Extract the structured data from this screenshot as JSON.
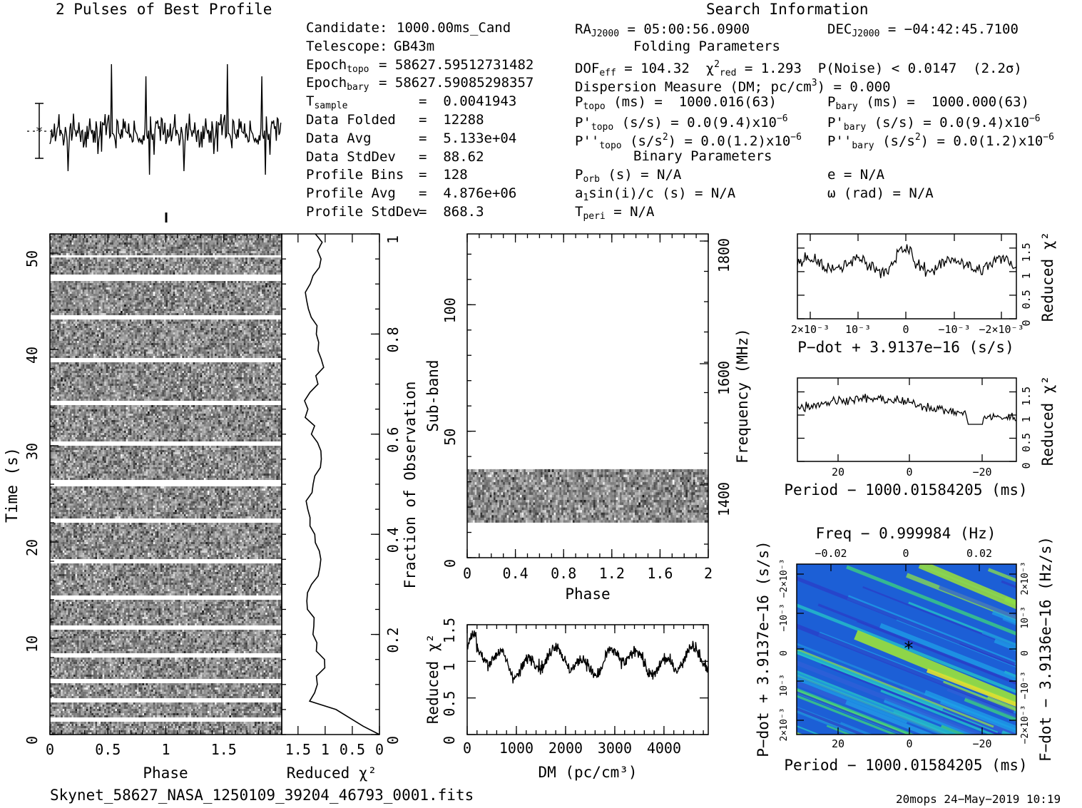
{
  "header": {
    "profile_title": "2 Pulses of Best Profile",
    "search_title": "Search Information"
  },
  "info": {
    "c1": [
      {
        "k": "Candidate:",
        "v": "1000.00ms_Cand"
      },
      {
        "k": "Telescope:",
        "v": "GB43m"
      },
      {
        "k": "Epoch_topo",
        "v": "= 58627.59512731482"
      },
      {
        "k": "Epoch_bary",
        "v": "= 58627.59085298357"
      },
      {
        "k": "T_sample",
        "v": "=  0.0041943"
      },
      {
        "k": "Data Folded",
        "v": "=  12288"
      },
      {
        "k": "Data Avg",
        "v": "=  5.133e+04"
      },
      {
        "k": "Data StdDev",
        "v": "=  88.62"
      },
      {
        "k": "Profile Bins",
        "v": "=  128"
      },
      {
        "k": "Profile Avg",
        "v": "=  4.876e+06"
      },
      {
        "k": "Profile StdDev",
        "v": "=  868.3"
      }
    ],
    "ra": "RA_J2000 = 05:00:56.0900",
    "dec": "DEC_J2000 = −04:42:45.7100",
    "folding_title": "Folding Parameters",
    "dof_line": "DOF_eff = 104.32  χ²_red = 1.293  P(Noise) < 0.0147  (2.2σ)",
    "dm_line": "Dispersion Measure (DM; pc/cm³) = 0.000",
    "p_topo": "P_topo (ms) =  1000.016(63)",
    "p_bary": "P_bary (ms) =  1000.000(63)",
    "pd_topo": "P'_topo (s/s) = 0.0(9.4)x10⁻⁶",
    "pd_bary": "P'_bary (s/s) = 0.0(9.4)x10⁻⁶",
    "pdd_topo": "P''_topo (s/s²) = 0.0(1.2)x10⁻⁶",
    "pdd_bary": "P''_bary (s/s²) = 0.0(1.2)x10⁻⁶",
    "binary_title": "Binary Parameters",
    "porb": "P_orb (s) = N/A",
    "e": "e = N/A",
    "a1": "a₁sin(i)/c (s) = N/A",
    "omega": "ω (rad) = N/A",
    "tperi": "T_peri = N/A"
  },
  "footer": {
    "filename": "Skynet_58627_NASA_1250109_39204_46793_0001.fits",
    "stamp": "20mops 24−May−2019 10:19"
  },
  "chart_data": [
    {
      "type": "line",
      "name": "profile",
      "title": "2 Pulses of Best Profile",
      "bins": 128,
      "pulses": 2
    },
    {
      "type": "heatmap",
      "name": "time-phase",
      "xlabel": "Phase",
      "ylabel": "Time (s)",
      "xlim": [
        0,
        2
      ],
      "ylim": [
        0,
        52
      ],
      "xticks": [
        "0",
        "0.5",
        "1",
        "1.5"
      ],
      "yticks": [
        "0",
        "10",
        "20",
        "30",
        "40",
        "50"
      ]
    },
    {
      "type": "line",
      "name": "time-chi2",
      "xlabel": "Reduced χ²",
      "ylabel": "Fraction of Observation",
      "xlim": [
        1.8,
        0
      ],
      "ylim": [
        0,
        1
      ],
      "xticks": [
        "1.5",
        "1",
        "0.5",
        "0"
      ],
      "yticks": [
        "0",
        "0.2",
        "0.4",
        "0.6",
        "0.8",
        "1"
      ]
    },
    {
      "type": "heatmap",
      "name": "subband-phase",
      "xlabel": "Phase",
      "ylabel": "Sub-band",
      "ylabel_right": "Frequency (MHz)",
      "xlim": [
        0,
        2
      ],
      "ylim": [
        0,
        128
      ],
      "xticks": [
        "0",
        "0.4",
        "0.8",
        "1.2",
        "1.6",
        "2"
      ],
      "yticks": [
        "0",
        "50",
        "100"
      ],
      "freq_ticks": [
        "1400",
        "1600",
        "1800"
      ],
      "active_subbands": [
        14,
        35
      ]
    },
    {
      "type": "line",
      "name": "dm-chi2",
      "xlabel": "DM (pc/cm³)",
      "ylabel": "Reduced χ²",
      "xlim": [
        0,
        4900
      ],
      "ylim": [
        0,
        1.5
      ],
      "xticks": [
        "0",
        "1000",
        "2000",
        "3000",
        "4000"
      ],
      "yticks": [
        "0",
        "0.5",
        "1",
        "1.5"
      ]
    },
    {
      "type": "line",
      "name": "pdot-chi2",
      "xlabel": "P−dot + 3.9137e−16 (s/s)",
      "ylabel": "Reduced χ²",
      "ylim": [
        0,
        1.8
      ],
      "xticks": [
        "2×10⁻³",
        "10⁻³",
        "0",
        "−10⁻³",
        "−2×10⁻³"
      ],
      "yticks": [
        "0",
        "0.5",
        "1",
        "1.5"
      ]
    },
    {
      "type": "line",
      "name": "period-chi2",
      "xlabel": "Period − 1000.01584205 (ms)",
      "ylabel": "Reduced χ²",
      "ylim": [
        0,
        1.8
      ],
      "xticks": [
        "20",
        "0",
        "−20"
      ],
      "yticks": [
        "0",
        "0.5",
        "1",
        "1.5"
      ]
    },
    {
      "type": "heatmap",
      "name": "p-pdot",
      "xlabel": "Period − 1000.01584205 (ms)",
      "xlabel_top": "Freq − 0.999984 (Hz)",
      "ylabel": "P−dot + 3.9137e−16 (s/s)",
      "ylabel_right": "F−dot − 3.9136e−16 (Hz/s)",
      "xticks": [
        "20",
        "0",
        "−20"
      ],
      "xticks_top": [
        "−0.02",
        "0",
        "0.02"
      ],
      "yticks": [
        "2×10⁻³",
        "10⁻³",
        "0",
        "−10⁻³",
        "−2×10⁻³"
      ],
      "yticks_right": [
        "−2×10⁻³",
        "−10⁻³",
        "0",
        "10⁻³",
        "2×10⁻³"
      ]
    }
  ]
}
